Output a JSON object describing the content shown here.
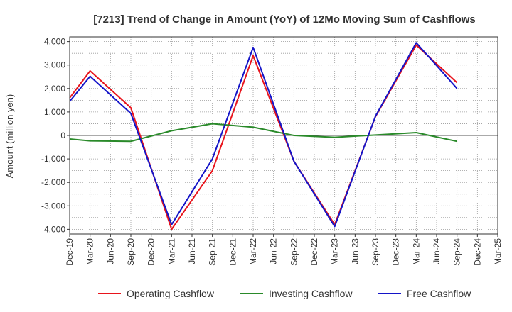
{
  "chart_data": {
    "type": "line",
    "title": "[7213]  Trend of Change in Amount (YoY) of 12Mo Moving Sum of Cashflows",
    "xlabel": "",
    "ylabel": "Amount (million yen)",
    "ylim": [
      -4200,
      4200
    ],
    "yticks": [
      -4000,
      -3000,
      -2000,
      -1000,
      0,
      1000,
      2000,
      3000,
      4000
    ],
    "ytick_labels": [
      "-4,000",
      "-3,000",
      "-2,000",
      "-1,000",
      "0",
      "1,000",
      "2,000",
      "3,000",
      "4,000"
    ],
    "categories": [
      "Dec-19",
      "Mar-20",
      "Jun-20",
      "Sep-20",
      "Dec-20",
      "Mar-21",
      "Jun-21",
      "Sep-21",
      "Dec-21",
      "Mar-22",
      "Jun-22",
      "Sep-22",
      "Dec-22",
      "Mar-23",
      "Jun-23",
      "Sep-23",
      "Dec-23",
      "Mar-24",
      "Jun-24",
      "Sep-24",
      "Dec-24",
      "Mar-25"
    ],
    "series": [
      {
        "name": "Operating Cashflow",
        "color": "#e8141c",
        "values": [
          1600,
          2750,
          null,
          1180,
          null,
          -4000,
          null,
          -1500,
          null,
          3400,
          null,
          -1100,
          null,
          -3800,
          null,
          800,
          null,
          3850,
          null,
          2250,
          null,
          null
        ]
      },
      {
        "name": "Investing Cashflow",
        "color": "#2a8a2a",
        "values": [
          -150,
          -230,
          null,
          -250,
          null,
          200,
          null,
          500,
          null,
          350,
          null,
          0,
          null,
          -80,
          null,
          20,
          null,
          120,
          null,
          -250,
          null,
          null
        ]
      },
      {
        "name": "Free Cashflow",
        "color": "#1414c8",
        "values": [
          1450,
          2520,
          null,
          940,
          null,
          -3800,
          null,
          -1000,
          null,
          3750,
          null,
          -1100,
          null,
          -3880,
          null,
          820,
          null,
          3950,
          null,
          2000,
          null,
          null
        ]
      }
    ],
    "grid": true,
    "legend_position": "bottom"
  }
}
